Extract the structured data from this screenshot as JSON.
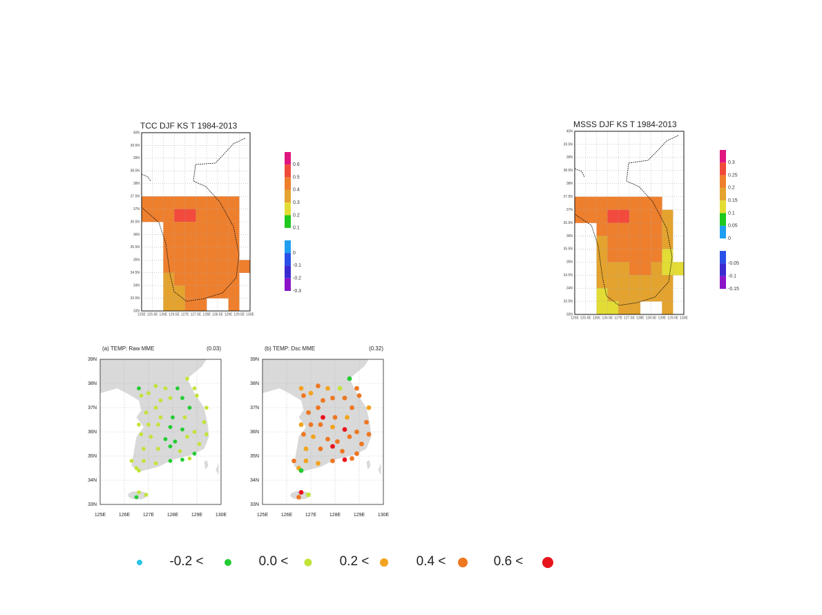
{
  "panels": [
    {
      "title": "TCC DJF KS T 1984-2013",
      "colorbar": [
        "0.6",
        "0.5",
        "0.4",
        "0.3",
        "0.2",
        "0.1",
        "0",
        "-0.1",
        "-0.2",
        "-0.3"
      ],
      "y_labels": [
        "40N",
        "39.5N",
        "39N",
        "38.5N",
        "38N",
        "37.5N",
        "37N",
        "36.5N",
        "36N",
        "35.5N",
        "35N",
        "34.5N",
        "34N",
        "33.5N",
        "33N"
      ],
      "x_labels": [
        "125E",
        "125.5E",
        "126E",
        "126.5E",
        "127E",
        "127.5E",
        "128E",
        "128.5E",
        "129E",
        "129.5E",
        "130E"
      ]
    },
    {
      "title": "MSSS DJF KS T 1984-2013",
      "colorbar": [
        "0.3",
        "0.25",
        "0.2",
        "0.15",
        "0.1",
        "0.05",
        "0",
        "-0.05",
        "-0.1",
        "-0.15"
      ],
      "y_labels": [
        "40N",
        "39.5N",
        "39N",
        "38.5N",
        "38N",
        "37.5N",
        "37N",
        "36.5N",
        "36N",
        "35.5N",
        "35N",
        "34.5N",
        "34N",
        "33.5N",
        "33N"
      ],
      "x_labels": [
        "125E",
        "125.5E",
        "126E",
        "126.5E",
        "127E",
        "127.5E",
        "128E",
        "128.5E",
        "129E",
        "129.5E",
        "130E"
      ]
    }
  ],
  "station_maps": [
    {
      "title": "(a) TEMP: Raw MME",
      "score": "(0.03)",
      "lat_labels": [
        "39N",
        "38N",
        "37N",
        "36N",
        "35N",
        "34N",
        "33N"
      ],
      "lon_labels": [
        "125E",
        "126E",
        "127E",
        "128E",
        "129E",
        "130E"
      ]
    },
    {
      "title": "(b) TEMP: Dsc MME",
      "score": "(0.32)",
      "lat_labels": [
        "39N",
        "38N",
        "37N",
        "36N",
        "35N",
        "34N",
        "33N"
      ],
      "lon_labels": [
        "125E",
        "126E",
        "127E",
        "128E",
        "129E",
        "130E"
      ]
    }
  ],
  "legend": [
    "-0.2 <",
    "0.0 <",
    "0.2 <",
    "0.4 <",
    "0.6 <"
  ]
}
